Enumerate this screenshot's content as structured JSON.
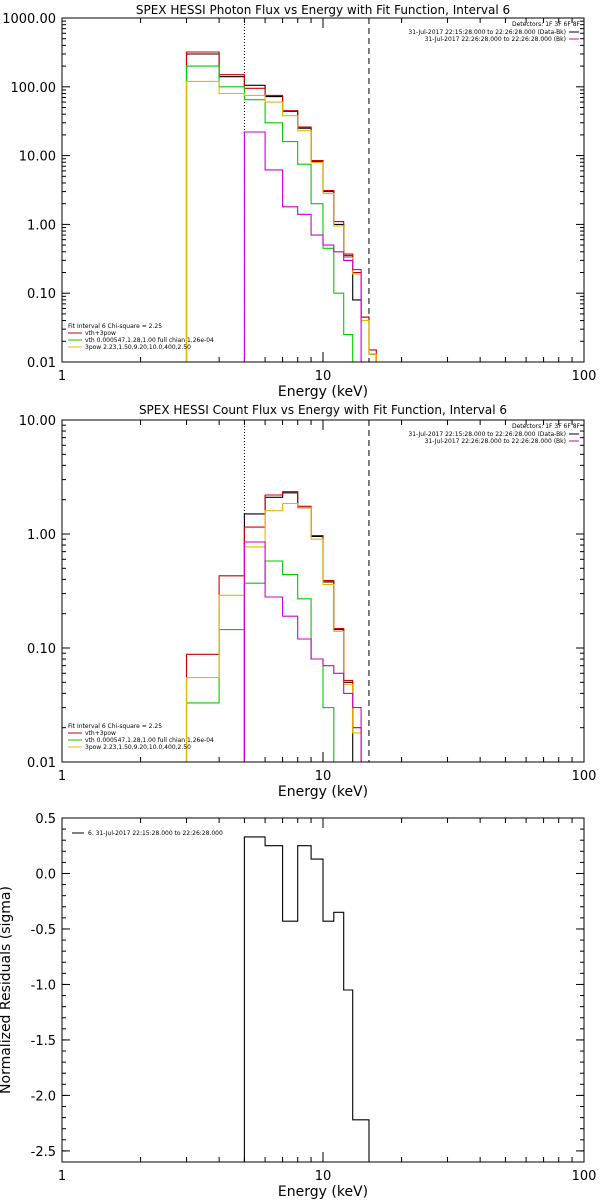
{
  "chart_data": [
    {
      "type": "line",
      "title": "SPEX HESSI Photon Flux vs Energy with Fit Function, Interval 6",
      "xlabel": "Energy (keV)",
      "ylabel": "",
      "xscale": "log",
      "yscale": "log",
      "xlim": [
        1,
        100
      ],
      "ylim": [
        0.01,
        1000
      ],
      "xticks": [
        1,
        10,
        100
      ],
      "xtick_labels": [
        "1",
        "10",
        "100"
      ],
      "yticks": [
        0.01,
        0.1,
        1,
        10,
        100,
        1000
      ],
      "ytick_labels": [
        "0.01",
        "0.10",
        "1.00",
        "10.00",
        "100.00",
        "1000.00"
      ],
      "vlines": [
        {
          "x": 5.0,
          "style": "dotted"
        },
        {
          "x": 15.0,
          "style": "dashed"
        }
      ],
      "edges": [
        3,
        4,
        5,
        6,
        7,
        8,
        9,
        10,
        11,
        12,
        13,
        14,
        15,
        16,
        17,
        18,
        19,
        20
      ],
      "series": [
        {
          "name": "",
          "color": "#000000",
          "values": [
            300,
            140,
            105,
            72,
            44,
            25,
            8.2,
            3.0,
            1.0,
            0.35,
            0.08,
            0.045,
            0.013,
            null,
            null,
            null,
            null
          ]
        },
        {
          "name": "vth+3pow",
          "color": "#cc0000",
          "values": [
            320,
            150,
            95,
            75,
            45,
            26,
            8.5,
            3.1,
            1.1,
            0.37,
            0.2,
            0.045,
            0.015,
            null,
            null,
            null,
            null
          ]
        },
        {
          "name": "vth 0.000547,1.28,1.00  full chian 1.26e-04",
          "color": "#00cc00",
          "values": [
            200,
            100,
            65,
            30,
            16,
            7.5,
            2.0,
            0.45,
            0.1,
            0.025,
            null,
            null,
            null,
            null,
            null,
            null,
            null
          ]
        },
        {
          "name": "3pow 2.23,1.50,9.20,10.0,400,2.50",
          "color": "#e6b800",
          "values": [
            120,
            80,
            75,
            60,
            38,
            23,
            8.0,
            2.8,
            0.95,
            0.33,
            0.19,
            0.04,
            0.013,
            null,
            null,
            null,
            null
          ]
        },
        {
          "name": "",
          "color": "#cc00cc",
          "values": [
            null,
            null,
            22,
            6.2,
            1.8,
            1.4,
            0.7,
            0.5,
            0.4,
            0.3,
            0.22,
            null,
            null,
            null,
            null,
            null,
            null
          ]
        }
      ],
      "legend_header": "Detectors: 1F 3F 6F 8F",
      "legend_entries": [
        {
          "text": "31-Jul-2017 22:15:28.000 to 22:26:28.000 (Data-Bk)",
          "color": "#000000"
        },
        {
          "text": "31-Jul-2017 22:26:28.000 to 22:26:28.000 (Bk)",
          "color": "#cc00cc"
        }
      ],
      "fit_header": "Fit Interval 6   Chi-square = 2.25",
      "legend_position": "lower-left"
    },
    {
      "type": "line",
      "title": "SPEX HESSI Count Flux vs Energy with Fit Function, Interval 6",
      "xlabel": "Energy (keV)",
      "ylabel": "",
      "xscale": "log",
      "yscale": "log",
      "xlim": [
        1,
        100
      ],
      "ylim": [
        0.01,
        10
      ],
      "xticks": [
        1,
        10,
        100
      ],
      "xtick_labels": [
        "1",
        "10",
        "100"
      ],
      "yticks": [
        0.01,
        0.1,
        1,
        10
      ],
      "ytick_labels": [
        "0.01",
        "0.10",
        "1.00",
        "10.00"
      ],
      "vlines": [
        {
          "x": 5.0,
          "style": "dotted"
        },
        {
          "x": 15.0,
          "style": "dashed"
        }
      ],
      "edges": [
        3,
        4,
        5,
        6,
        7,
        8,
        9,
        10,
        11,
        12,
        13,
        14,
        15
      ],
      "series": [
        {
          "name": "",
          "color": "#000000",
          "values": [
            null,
            null,
            1.5,
            2.1,
            2.3,
            1.7,
            0.95,
            0.38,
            0.145,
            0.05,
            0.01,
            0.005
          ]
        },
        {
          "name": "vth+3pow",
          "color": "#cc0000",
          "values": [
            0.088,
            0.43,
            1.15,
            2.2,
            2.35,
            1.75,
            0.97,
            0.39,
            0.148,
            0.052,
            0.02,
            null
          ]
        },
        {
          "name": "vth 0.000547,1.28,1.00  full chian 1.26e-04",
          "color": "#00cc00",
          "values": [
            0.033,
            0.145,
            0.37,
            0.58,
            0.44,
            0.27,
            0.08,
            0.03,
            0.01,
            null,
            null,
            null
          ]
        },
        {
          "name": "3pow 2.23,1.50,9.20,10.0,400,2.50",
          "color": "#e6b800",
          "values": [
            0.055,
            0.29,
            0.77,
            1.6,
            1.85,
            1.7,
            0.9,
            0.36,
            0.14,
            0.048,
            0.018,
            null
          ]
        },
        {
          "name": "",
          "color": "#cc00cc",
          "values": [
            null,
            null,
            0.85,
            0.28,
            0.19,
            0.12,
            0.08,
            0.07,
            0.06,
            0.04,
            0.03,
            null
          ]
        }
      ],
      "legend_header": "Detectors: 1F 3F 6F 8F",
      "legend_entries": [
        {
          "text": "31-Jul-2017 22:15:28.000 to 22:26:28.000 (Data-Bk)",
          "color": "#000000"
        },
        {
          "text": "31-Jul-2017 22:26:28.000 to 22:26:28.000 (Bk)",
          "color": "#cc00cc"
        }
      ],
      "fit_header": "Fit Interval 6   Chi-square = 2.25",
      "legend_position": "lower-left"
    },
    {
      "type": "line",
      "title": "",
      "xlabel": "Energy (keV)",
      "ylabel": "Normalized Residuals (sigma)",
      "xscale": "log",
      "xlim": [
        1,
        100
      ],
      "ylim": [
        -2.6,
        0.5
      ],
      "xticks": [
        1,
        10,
        100
      ],
      "xtick_labels": [
        "1",
        "10",
        "100"
      ],
      "yticks": [
        0.5,
        0.0,
        -0.5,
        -1.0,
        -1.5,
        -2.0,
        -2.5
      ],
      "ytick_labels": [
        "0.5",
        "0.0",
        "-0.5",
        "-1.0",
        "-1.5",
        "-2.0",
        "-2.5"
      ],
      "edges": [
        5,
        6,
        7,
        8,
        9,
        10,
        11,
        12,
        13,
        14,
        15
      ],
      "series": [
        {
          "name": "6. 31-Jul-2017 22:15:28.000 to 22:26:28.000",
          "color": "#000000",
          "values": [
            0.33,
            0.25,
            -0.43,
            0.25,
            0.13,
            -0.43,
            -0.35,
            -1.05,
            -2.22,
            -2.22
          ]
        }
      ],
      "legend_position": "top-left"
    }
  ]
}
